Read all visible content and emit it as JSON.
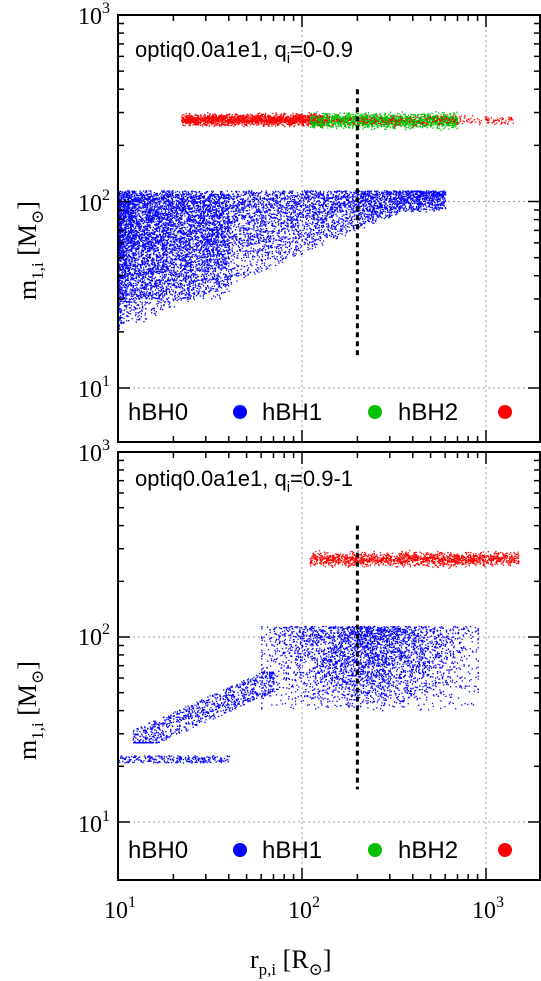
{
  "colors": {
    "hBH0": "#0000ff",
    "hBH1": "#00c000",
    "hBH2": "#ff0000",
    "grid": "#a0a0a0",
    "frame": "#000000",
    "vline": "#000000"
  },
  "axes": {
    "ylabel": "m",
    "ylabel_sub": "1,i",
    "ylabel_unit_open": " [M",
    "ylabel_unit_sub": "⊙",
    "ylabel_unit_close": "]",
    "xlabel": "r",
    "xlabel_sub": "p,i",
    "xlabel_unit_open": " [R",
    "xlabel_unit_sub": "⊙",
    "xlabel_unit_close": "]",
    "x_ticks": [
      {
        "base": "10",
        "exp": "1",
        "value": 10
      },
      {
        "base": "10",
        "exp": "2",
        "value": 100
      },
      {
        "base": "10",
        "exp": "3",
        "value": 1000
      }
    ],
    "y_ticks": [
      {
        "base": "10",
        "exp": "1",
        "value": 10
      },
      {
        "base": "10",
        "exp": "2",
        "value": 100
      },
      {
        "base": "10",
        "exp": "3",
        "value": 1000
      }
    ]
  },
  "legend": [
    {
      "label": "hBH0",
      "color_key": "hBH0"
    },
    {
      "label": "hBH1",
      "color_key": "hBH1"
    },
    {
      "label": "hBH2",
      "color_key": "hBH2"
    }
  ],
  "chart_data": [
    {
      "type": "scatter",
      "title": "optiq0.0a1e1, q",
      "title_sub": "i",
      "title_tail": "=0-0.9",
      "xscale": "log",
      "yscale": "log",
      "xlim": [
        10,
        2000
      ],
      "ylim": [
        7,
        1000
      ],
      "grid": true,
      "legend_position": "bottom",
      "vline": {
        "x": 200,
        "y_from": 15,
        "y_to": 400
      },
      "clouds": [
        {
          "series": "hBH0",
          "n": 7000,
          "xr": [
            10,
            600
          ],
          "yr": [
            20,
            115
          ],
          "shape": "fan"
        },
        {
          "series": "hBH0",
          "n": 2500,
          "xr": [
            10,
            40
          ],
          "yr": [
            30,
            110
          ],
          "shape": "dense"
        },
        {
          "series": "hBH2",
          "n": 1800,
          "xr": [
            22,
            130
          ],
          "yr": [
            250,
            305
          ],
          "shape": "band"
        },
        {
          "series": "hBH1",
          "n": 1800,
          "xr": [
            110,
            700
          ],
          "yr": [
            240,
            310
          ],
          "shape": "band"
        },
        {
          "series": "hBH2",
          "n": 300,
          "xr": [
            110,
            1400
          ],
          "yr": [
            250,
            300
          ],
          "shape": "band"
        }
      ]
    },
    {
      "type": "scatter",
      "title": "optiq0.0a1e1, q",
      "title_sub": "i",
      "title_tail": "=0.9-1",
      "xscale": "log",
      "yscale": "log",
      "xlim": [
        10,
        2000
      ],
      "ylim": [
        5,
        1000
      ],
      "grid": true,
      "legend_position": "bottom",
      "vline": {
        "x": 200,
        "y_from": 15,
        "y_to": 400
      },
      "clouds": [
        {
          "series": "hBH0",
          "n": 3500,
          "xr": [
            60,
            900
          ],
          "yr": [
            40,
            115
          ],
          "shape": "blob"
        },
        {
          "series": "hBH0",
          "n": 900,
          "xr": [
            12,
            70
          ],
          "yr": [
            27,
            65
          ],
          "shape": "diag"
        },
        {
          "series": "hBH0",
          "n": 250,
          "xr": [
            10,
            40
          ],
          "yr": [
            21,
            23
          ],
          "shape": "flat"
        },
        {
          "series": "hBH2",
          "n": 1500,
          "xr": [
            110,
            1500
          ],
          "yr": [
            235,
            300
          ],
          "shape": "band"
        }
      ]
    }
  ]
}
